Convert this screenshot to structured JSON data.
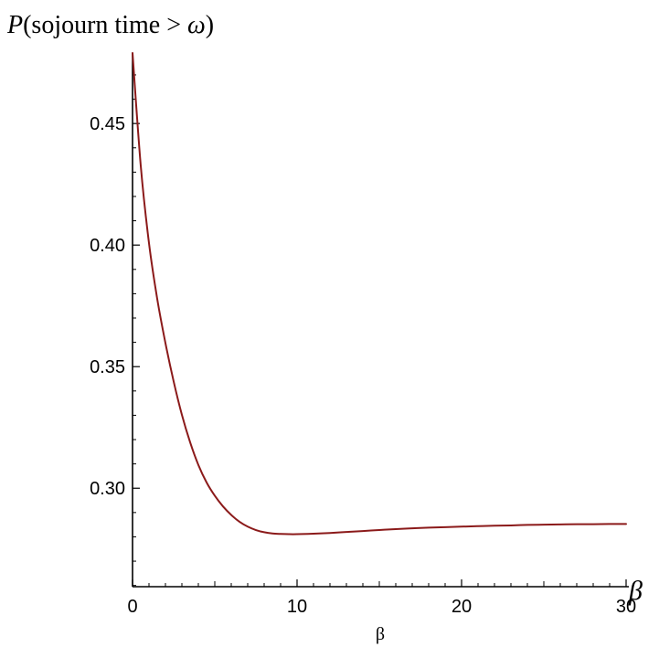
{
  "chart_data": {
    "type": "line",
    "title_parts": {
      "p": "P",
      "mid": "(sojourn time > ",
      "omega": "ω",
      "close": ")"
    },
    "x_axis_end_label": "β",
    "xlabel": "β",
    "xlim": [
      0,
      30
    ],
    "ylim": [
      0.2595,
      0.479
    ],
    "x_ticks": [
      0,
      10,
      20,
      30
    ],
    "x_tick_labels": [
      "0",
      "10",
      "20",
      "30"
    ],
    "y_ticks": [
      0.3,
      0.35,
      0.4,
      0.45
    ],
    "y_tick_labels": [
      "0.30",
      "0.35",
      "0.40",
      "0.45"
    ],
    "grid": false,
    "series": [
      {
        "color": "#8b1a1a",
        "x": [
          0,
          0.5,
          1,
          1.5,
          2,
          2.5,
          3,
          3.5,
          4,
          4.5,
          5,
          5.5,
          6,
          6.5,
          7,
          7.5,
          8,
          8.5,
          9,
          9.5,
          10,
          11,
          12,
          13,
          14,
          15,
          16,
          17,
          18,
          19,
          20,
          21,
          22,
          23,
          24,
          25,
          26,
          27,
          28,
          29,
          30
        ],
        "y": [
          0.479,
          0.4326,
          0.4008,
          0.3779,
          0.3597,
          0.3439,
          0.3302,
          0.3189,
          0.3096,
          0.3024,
          0.2969,
          0.2925,
          0.289,
          0.2862,
          0.2842,
          0.2828,
          0.2819,
          0.2814,
          0.2812,
          0.2811,
          0.2811,
          0.2813,
          0.2816,
          0.282,
          0.2824,
          0.2828,
          0.2832,
          0.2835,
          0.2838,
          0.284,
          0.2842,
          0.2844,
          0.2846,
          0.2847,
          0.2849,
          0.285,
          0.2851,
          0.2852,
          0.2852,
          0.2853,
          0.2853
        ]
      }
    ]
  }
}
